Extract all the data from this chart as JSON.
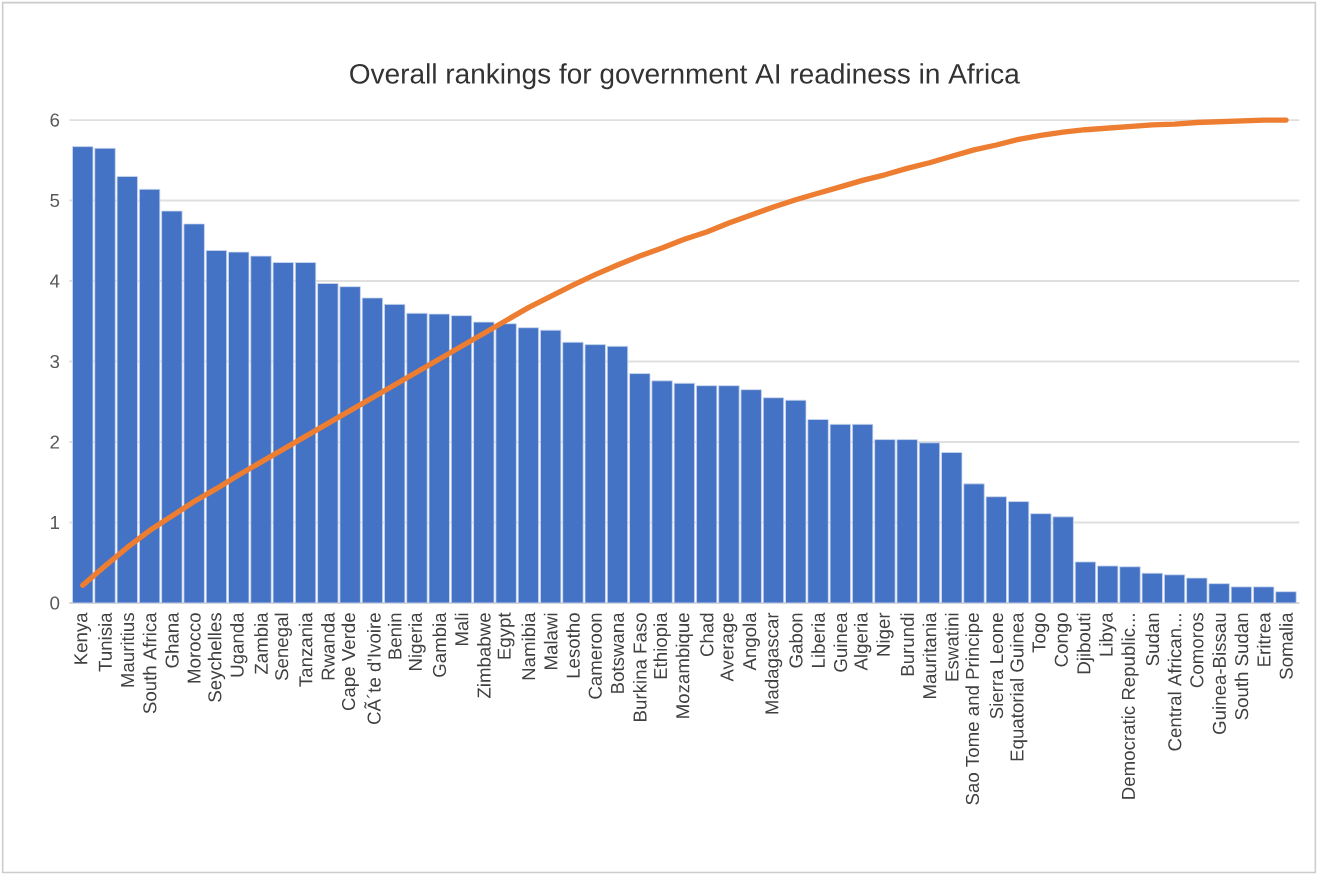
{
  "chart_data": {
    "type": "bar",
    "title": "Overall rankings for government AI readiness in Africa",
    "categories": [
      "Kenya",
      "Tunisia",
      "Mauritius",
      "South Africa",
      "Ghana",
      "Morocco",
      "Seychelles",
      "Uganda",
      "Zambia",
      "Senegal",
      "Tanzania",
      "Rwanda",
      "Cape Verde",
      "CÃ´te d'Ivoire",
      "Benin",
      "Nigeria",
      "Gambia",
      "Mali",
      "Zimbabwe",
      "Egypt",
      "Namibia",
      "Malawi",
      "Lesotho",
      "Cameroon",
      "Botswana",
      "Burkina Faso",
      "Ethiopia",
      "Mozambique",
      "Chad",
      "Average",
      "Angola",
      "Madagascar",
      "Gabon",
      "Liberia",
      "Guinea",
      "Algeria",
      "Niger",
      "Burundi",
      "Mauritania",
      "Eswatini",
      "Sao Tome and Principe",
      "Sierra Leone",
      "Equatorial Guinea",
      "Togo",
      "Congo",
      "Djibouti",
      "Libya",
      "Democratic Republic...",
      "Sudan",
      "Central African...",
      "Comoros",
      "Guinea-Bissau",
      "South Sudan",
      "Eritrea",
      "Somalia"
    ],
    "series": [
      {
        "color": "#4472c4",
        "values": [
          5.67,
          5.65,
          5.3,
          5.14,
          4.87,
          4.71,
          4.38,
          4.36,
          4.31,
          4.23,
          4.23,
          3.97,
          3.93,
          3.79,
          3.71,
          3.6,
          3.59,
          3.57,
          3.49,
          3.47,
          3.42,
          3.39,
          3.24,
          3.21,
          3.19,
          2.85,
          2.76,
          2.73,
          2.7,
          2.7,
          2.65,
          2.55,
          2.52,
          2.28,
          2.22,
          2.22,
          2.03,
          2.03,
          1.99,
          1.87,
          1.48,
          1.32,
          1.26,
          1.11,
          1.07,
          0.51,
          0.46,
          0.45,
          0.37,
          0.35,
          0.31,
          0.24,
          0.2,
          0.2,
          0.14
        ]
      },
      {
        "type": "line",
        "color": "#ed7d31",
        "values": [
          0.22,
          0.46,
          0.69,
          0.9,
          1.08,
          1.26,
          1.42,
          1.59,
          1.75,
          1.91,
          2.07,
          2.23,
          2.39,
          2.55,
          2.71,
          2.87,
          3.03,
          3.19,
          3.35,
          3.51,
          3.67,
          3.81,
          3.95,
          4.08,
          4.2,
          4.31,
          4.41,
          4.52,
          4.61,
          4.72,
          4.82,
          4.92,
          5.01,
          5.09,
          5.17,
          5.25,
          5.32,
          5.4,
          5.47,
          5.55,
          5.63,
          5.69,
          5.76,
          5.81,
          5.85,
          5.88,
          5.9,
          5.92,
          5.94,
          5.95,
          5.97,
          5.98,
          5.99,
          6.0,
          6.0
        ]
      }
    ],
    "ylim": [
      0,
      6
    ],
    "yticks": [
      0,
      1,
      2,
      3,
      4,
      5,
      6
    ],
    "grid": "y"
  }
}
